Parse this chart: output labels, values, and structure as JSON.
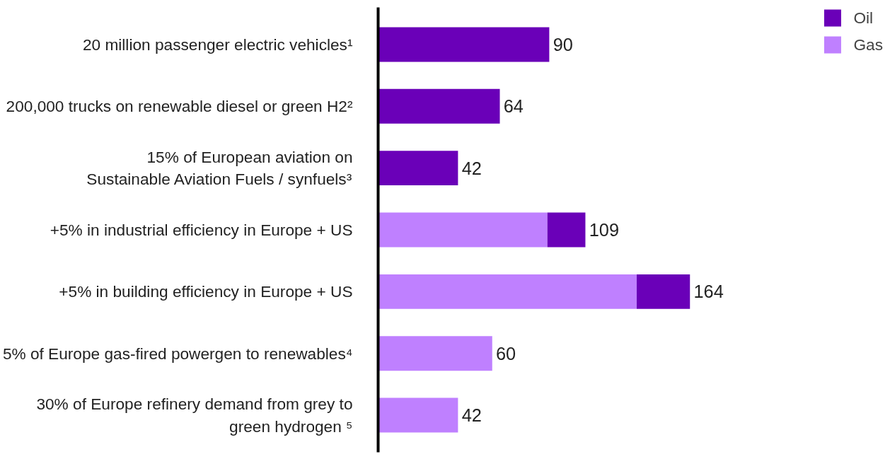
{
  "chart_data": {
    "type": "bar",
    "orientation": "horizontal",
    "stacked": true,
    "categories": [
      "20 million passenger electric vehicles¹",
      "200,000 trucks on renewable diesel or green H2²",
      "15% of European aviation on\nSustainable Aviation Fuels / synfuels³",
      "+5% in industrial efficiency in Europe + US",
      "+5% in building efficiency in Europe + US",
      "5% of Europe gas-fired powergen to renewables⁴",
      "30% of Europe refinery demand from grey to\ngreen hydrogen ⁵"
    ],
    "series": [
      {
        "name": "Gas",
        "color": "#bf80ff",
        "values": [
          null,
          null,
          null,
          89,
          136,
          60,
          42
        ],
        "value_labels": [
          null,
          null,
          null,
          null,
          null,
          "60",
          "42"
        ]
      },
      {
        "name": "Oil",
        "color": "#6a00b8",
        "values": [
          90,
          64,
          42,
          20,
          28,
          null,
          null
        ],
        "value_labels": [
          "90",
          "64",
          "42",
          null,
          null,
          null,
          null
        ]
      }
    ],
    "totals": [
      null,
      null,
      null,
      "109",
      "164",
      null,
      null
    ],
    "legend": "top right",
    "grid": false
  }
}
